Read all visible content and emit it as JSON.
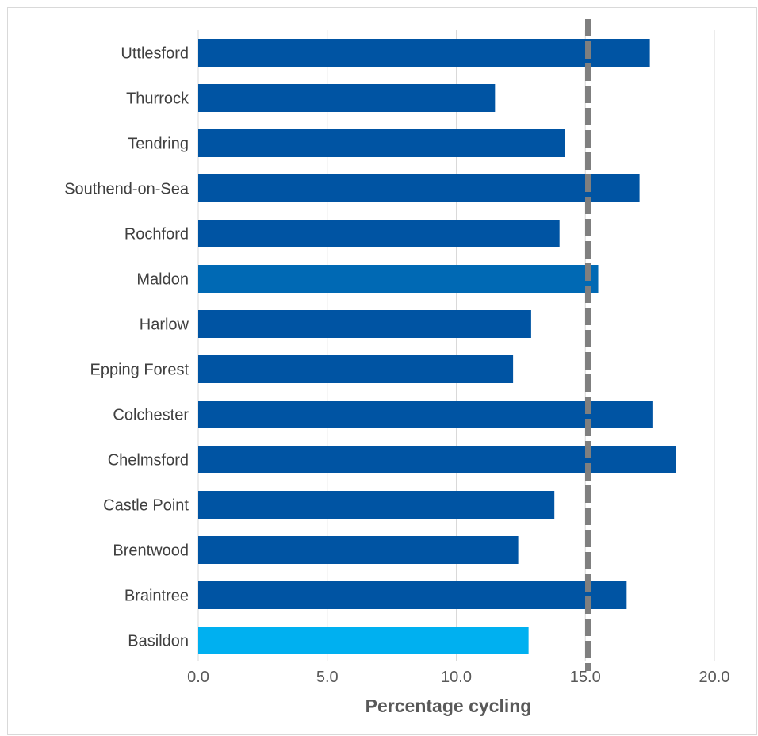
{
  "chart_data": {
    "type": "bar",
    "orientation": "horizontal",
    "title": "",
    "xlabel": "Percentage cycling",
    "ylabel": "",
    "xlim": [
      0,
      20
    ],
    "xticks": [
      0,
      5,
      10,
      15,
      20
    ],
    "xtick_labels": [
      "0.0",
      "5.0",
      "10.0",
      "15.0",
      "20.0"
    ],
    "grid": "vertical",
    "legend": "none",
    "categories": [
      "Uttlesford",
      "Thurrock",
      "Tendring",
      "Southend-on-Sea",
      "Rochford",
      "Maldon",
      "Harlow",
      "Epping Forest",
      "Colchester",
      "Chelmsford",
      "Castle Point",
      "Brentwood",
      "Braintree",
      "Basildon"
    ],
    "values": [
      17.5,
      11.5,
      14.2,
      17.1,
      14.0,
      15.5,
      12.9,
      12.2,
      17.6,
      18.5,
      13.8,
      12.4,
      16.6,
      12.8
    ],
    "bar_colors": [
      "#0054a3",
      "#0054a3",
      "#0054a3",
      "#0054a3",
      "#0054a3",
      "#0069b4",
      "#0054a3",
      "#0054a3",
      "#0054a3",
      "#0054a3",
      "#0054a3",
      "#0054a3",
      "#0054a3",
      "#00b0f0"
    ],
    "reference_line": {
      "value": 15.1,
      "style": "dashed",
      "color": "#7f7f7f"
    },
    "colors": {
      "grid": "#d9d9d9",
      "category_text": "#404040",
      "tick_text": "#595959",
      "axis_title": "#595959"
    }
  }
}
